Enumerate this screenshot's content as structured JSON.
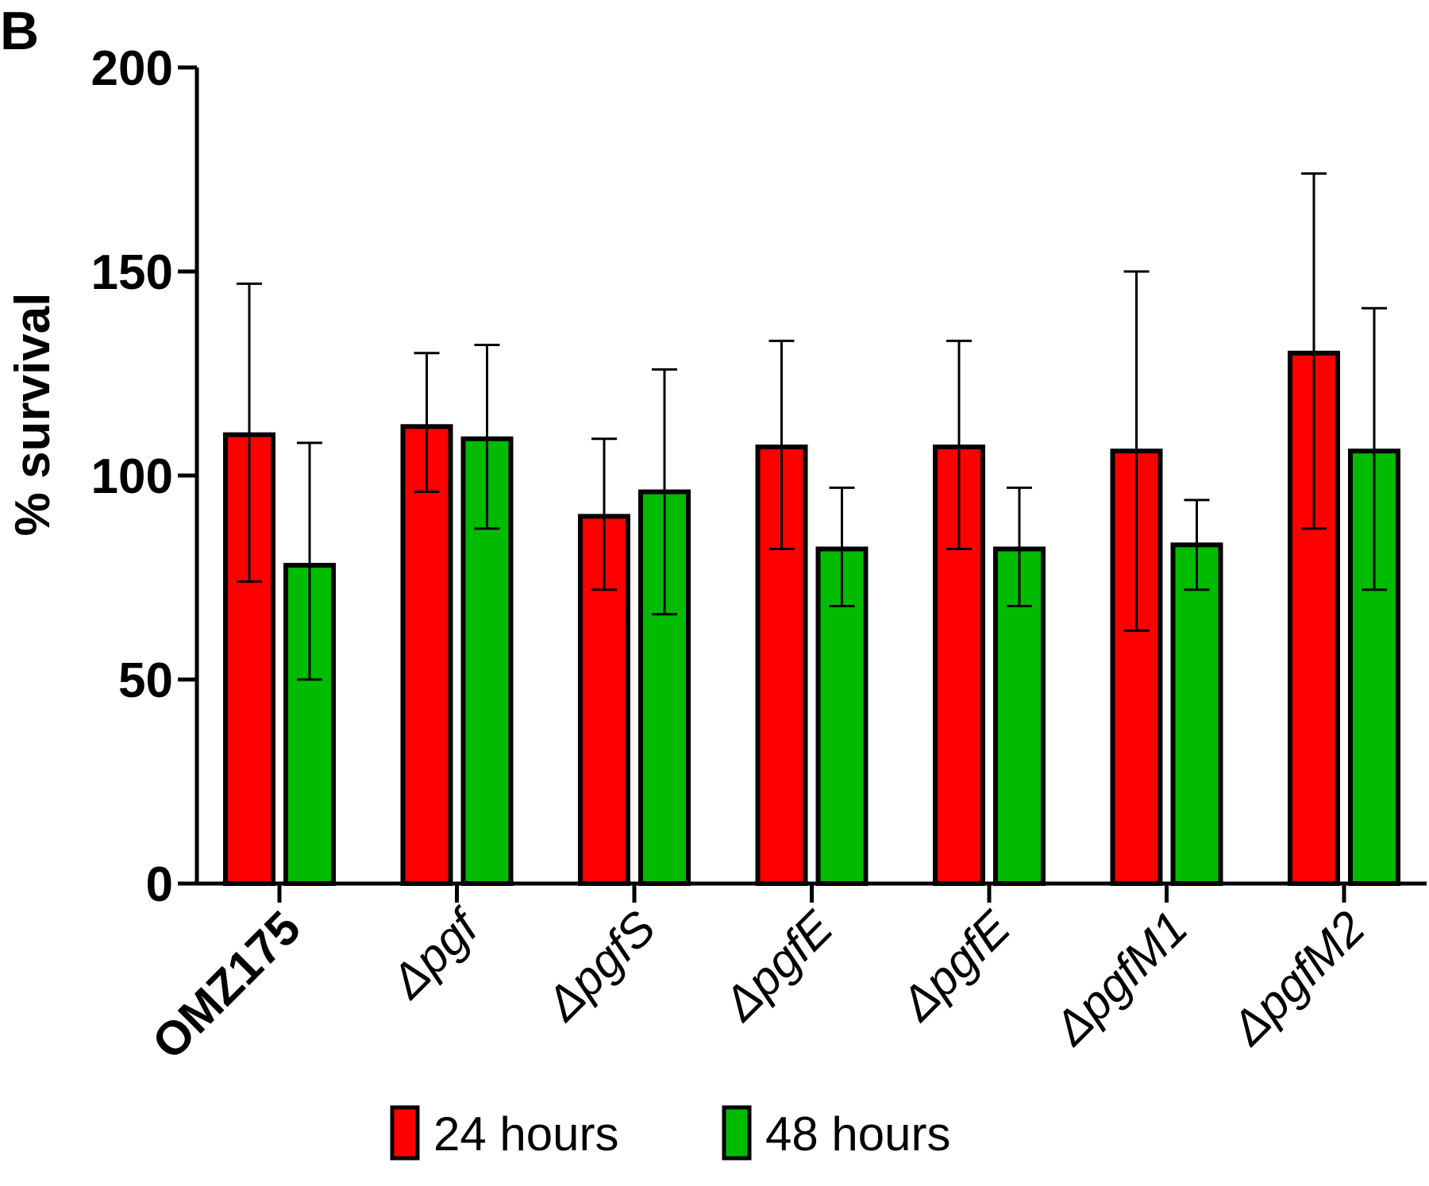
{
  "chart_data": {
    "type": "bar",
    "panel_label": "B",
    "title": "",
    "xlabel": "",
    "ylabel": "% survival",
    "ylim": [
      0,
      200
    ],
    "yticks": [
      "0",
      "50",
      "100",
      "150",
      "200"
    ],
    "categories": [
      "OMZ175",
      "Δpgf",
      "ΔpgfS",
      "ΔpgfE",
      "ΔpgfE",
      "ΔpgfM1",
      "ΔpgfM2"
    ],
    "category_styles": [
      "bold",
      "italic",
      "italic",
      "italic",
      "italic",
      "italic",
      "italic"
    ],
    "series": [
      {
        "name": "24 hours",
        "color": "#ff0000",
        "values": [
          110,
          112,
          90,
          107,
          107,
          106,
          130
        ],
        "error_low": [
          74,
          96,
          72,
          82,
          82,
          62,
          87
        ],
        "error_high": [
          147,
          130,
          109,
          133,
          133,
          150,
          174
        ]
      },
      {
        "name": "48 hours",
        "color": "#00bb00",
        "values": [
          78,
          109,
          96,
          82,
          82,
          83,
          106
        ],
        "error_low": [
          50,
          87,
          66,
          68,
          68,
          72,
          72
        ],
        "error_high": [
          108,
          132,
          126,
          97,
          97,
          94,
          141
        ]
      }
    ],
    "grid": false,
    "legend_position": "bottom-center"
  }
}
